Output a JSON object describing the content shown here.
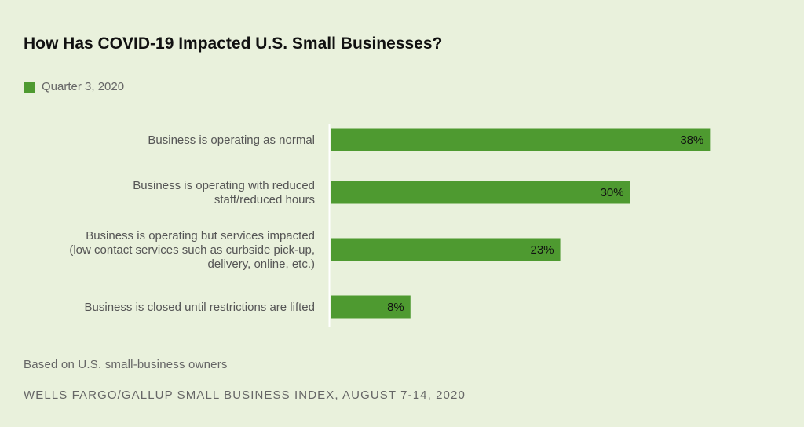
{
  "chart_data": {
    "type": "bar",
    "orientation": "horizontal",
    "title": "How Has COVID-19 Impacted U.S. Small Businesses?",
    "categories": [
      [
        "Business is operating as normal"
      ],
      [
        "Business is operating with reduced",
        "staff/reduced hours"
      ],
      [
        "Business is operating but services impacted",
        "(low contact services such as curbside pick-up,",
        "delivery, online, etc.)"
      ],
      [
        "Business is closed until restrictions are lifted"
      ]
    ],
    "series": [
      {
        "name": "Quarter 3, 2020",
        "values": [
          38,
          30,
          23,
          8
        ],
        "labels": [
          "38%",
          "30%",
          "23%",
          "8%"
        ],
        "color": "#4e9a30"
      }
    ],
    "xlim": [
      0,
      40
    ],
    "grid": false,
    "legend": "top-left"
  },
  "note": "Based on U.S. small-business owners",
  "source": "WELLS FARGO/GALLUP SMALL BUSINESS INDEX, AUGUST 7-14, 2020"
}
